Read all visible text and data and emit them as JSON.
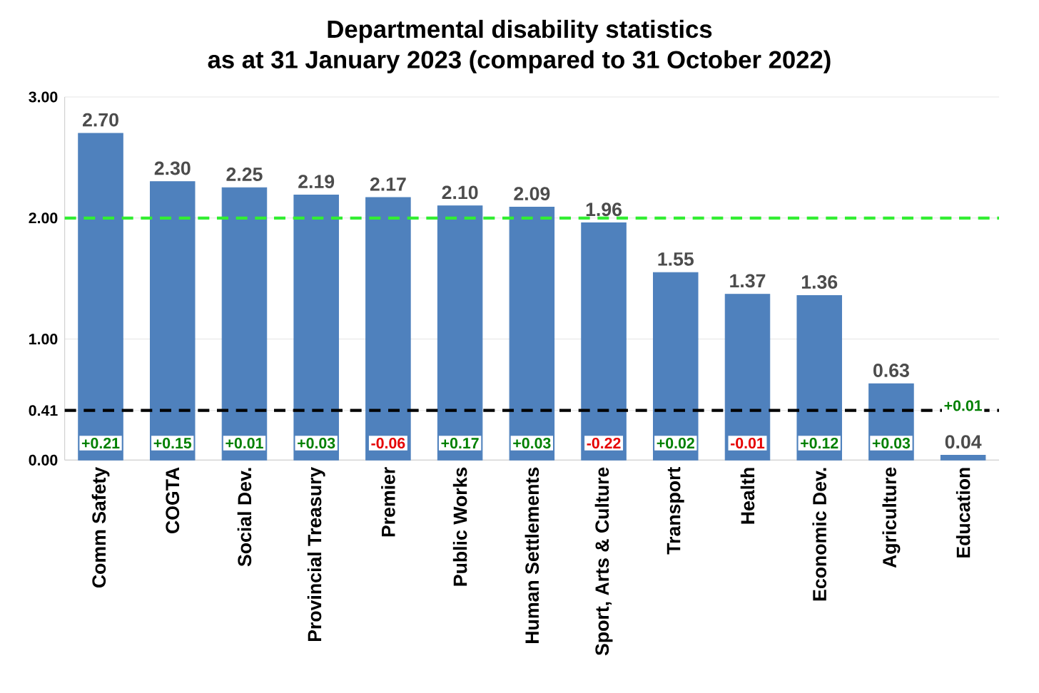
{
  "chart_data": {
    "type": "bar",
    "title": "Departmental disability statistics\nas at 31 January 2023 (compared to 31 October 2022)",
    "categories": [
      "Comm Safety",
      "COGTA",
      "Social Dev.",
      "Provincial Treasury",
      "Premier",
      "Public Works",
      "Human Settlements",
      "Sport, Arts & Culture",
      "Transport",
      "Health",
      "Economic Dev.",
      "Agriculture",
      "Education"
    ],
    "values": [
      2.7,
      2.3,
      2.25,
      2.19,
      2.17,
      2.1,
      2.09,
      1.96,
      1.55,
      1.37,
      1.36,
      0.63,
      0.04
    ],
    "color": "#4f81bd",
    "value_labels": [
      "2.70",
      "2.30",
      "2.25",
      "2.19",
      "2.17",
      "2.10",
      "2.09",
      "1.96",
      "1.55",
      "1.37",
      "1.36",
      "0.63",
      "0.04"
    ],
    "ylim": [
      0,
      3
    ],
    "yticks": [
      {
        "value": 0,
        "label": "0.00"
      },
      {
        "value": 0.41,
        "label": "0.41"
      },
      {
        "value": 1,
        "label": "1.00"
      },
      {
        "value": 2,
        "label": "2.00"
      },
      {
        "value": 3,
        "label": "3.00"
      }
    ],
    "grid": "y",
    "ref_lines": [
      {
        "axis": "y",
        "value": 2,
        "color": "#33ee33",
        "line_style": "dashed"
      },
      {
        "axis": "y",
        "value": 0.41,
        "color": "#000000",
        "line_style": "dashed"
      }
    ],
    "annotations": [
      "+0.21",
      "+0.15",
      "+0.01",
      "+0.03",
      "-0.06",
      "+0.17",
      "+0.03",
      "-0.22",
      "+0.02",
      "-0.01",
      "+0.12",
      "+0.03",
      "+0.01"
    ]
  }
}
